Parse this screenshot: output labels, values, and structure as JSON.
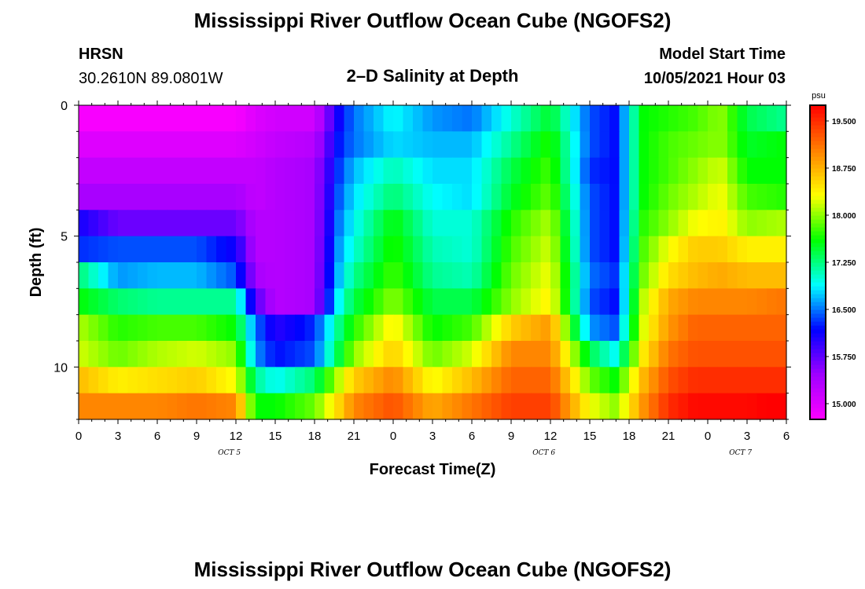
{
  "header": {
    "title": "Mississippi River Outflow Ocean Cube (NGOFS2)",
    "station": "HRSN",
    "coords": "30.2610N  89.0801W",
    "subtitle": "2–D Salinity at Depth",
    "model_label": "Model Start Time",
    "model_time": "10/05/2021 Hour 03"
  },
  "footer": {
    "title": "Mississippi River Outflow Ocean Cube (NGOFS2)"
  },
  "chart_data": {
    "type": "heatmap",
    "title": "2–D Salinity at Depth",
    "xlabel": "Forecast Time(Z)",
    "ylabel": "Depth (ft)",
    "x_tick_labels": [
      "0",
      "3",
      "6",
      "9",
      "12",
      "15",
      "18",
      "21",
      "0",
      "3",
      "6",
      "9",
      "12",
      "15",
      "18",
      "21",
      "0",
      "3",
      "6"
    ],
    "x_hours": [
      0,
      54
    ],
    "date_labels": [
      {
        "label": "OCT 5",
        "hour": 11.5
      },
      {
        "label": "OCT 6",
        "hour": 35.5
      },
      {
        "label": "OCT 7",
        "hour": 50.5
      }
    ],
    "y_ticks": [
      0,
      5,
      10
    ],
    "ylim": [
      0,
      12
    ],
    "depth_levels": [
      0.5,
      1.5,
      2.5,
      3.5,
      4.5,
      5.5,
      6.5,
      7.5,
      8.5,
      9.5,
      10.5,
      11.5
    ],
    "time_hours": [
      0,
      3,
      6,
      9,
      12,
      13.5,
      15,
      18,
      20,
      21,
      24,
      27,
      30,
      33,
      36,
      39,
      41,
      43,
      45,
      47,
      49,
      51,
      54
    ],
    "salinity": [
      [
        14.8,
        14.8,
        14.8,
        14.8,
        14.8,
        15.0,
        15.1,
        15.1,
        16.2,
        16.5,
        16.9,
        16.6,
        16.5,
        17.0,
        17.5,
        16.4,
        16.2,
        17.6,
        17.7,
        17.8,
        18.0,
        17.4,
        17.2
      ],
      [
        15.0,
        15.0,
        15.0,
        15.0,
        15.0,
        15.1,
        15.2,
        15.3,
        16.3,
        16.5,
        16.8,
        16.7,
        16.7,
        17.2,
        17.7,
        16.4,
        16.2,
        17.6,
        17.8,
        17.9,
        18.0,
        17.5,
        17.6
      ],
      [
        15.2,
        15.2,
        15.2,
        15.2,
        15.2,
        15.2,
        15.3,
        15.4,
        16.4,
        16.7,
        17.1,
        16.8,
        16.8,
        17.4,
        17.8,
        16.3,
        16.2,
        17.6,
        17.8,
        18.0,
        18.2,
        17.6,
        17.6
      ],
      [
        15.4,
        15.4,
        15.4,
        15.4,
        15.4,
        15.2,
        15.3,
        15.4,
        16.5,
        16.8,
        17.3,
        16.9,
        16.8,
        17.5,
        17.9,
        16.4,
        16.2,
        17.6,
        17.9,
        18.1,
        18.3,
        17.8,
        17.7
      ],
      [
        16.1,
        15.7,
        15.7,
        15.7,
        15.7,
        15.3,
        15.3,
        15.4,
        16.6,
        16.9,
        17.6,
        17.0,
        17.0,
        17.7,
        18.1,
        16.4,
        16.2,
        17.7,
        18.0,
        18.3,
        18.4,
        18.0,
        18.1
      ],
      [
        16.3,
        16.4,
        16.4,
        16.4,
        16.1,
        15.3,
        15.3,
        15.4,
        16.7,
        17.0,
        17.7,
        17.1,
        17.0,
        17.8,
        18.2,
        16.4,
        16.2,
        17.8,
        18.3,
        18.6,
        18.6,
        18.4,
        18.4
      ],
      [
        17.3,
        16.6,
        16.7,
        16.7,
        16.4,
        15.4,
        15.3,
        15.4,
        16.8,
        17.2,
        17.8,
        17.2,
        17.1,
        17.9,
        18.3,
        16.5,
        16.3,
        17.9,
        18.5,
        18.7,
        18.8,
        18.7,
        18.7
      ],
      [
        17.6,
        17.3,
        17.2,
        17.2,
        17.2,
        15.8,
        15.3,
        15.4,
        17.0,
        17.4,
        18.0,
        17.4,
        17.4,
        18.0,
        18.4,
        16.4,
        16.2,
        18.1,
        18.8,
        19.0,
        19.0,
        19.0,
        19.1
      ],
      [
        18.1,
        17.7,
        17.8,
        17.8,
        17.6,
        16.5,
        16.0,
        16.3,
        17.3,
        17.7,
        18.4,
        17.6,
        17.8,
        18.6,
        18.9,
        16.6,
        16.4,
        18.2,
        18.9,
        19.2,
        19.2,
        19.2,
        19.2
      ],
      [
        18.2,
        17.9,
        18.1,
        18.2,
        18.0,
        16.6,
        16.2,
        16.4,
        17.5,
        18.0,
        18.6,
        17.9,
        18.2,
        19.0,
        19.0,
        17.4,
        16.9,
        18.4,
        19.1,
        19.3,
        19.3,
        19.3,
        19.3
      ],
      [
        18.7,
        18.4,
        18.5,
        18.6,
        18.3,
        17.2,
        16.9,
        17.3,
        18.2,
        18.6,
        19.0,
        18.3,
        18.7,
        19.2,
        19.2,
        17.9,
        17.6,
        18.7,
        19.3,
        19.5,
        19.5,
        19.5,
        19.5
      ],
      [
        19.0,
        19.0,
        19.0,
        19.1,
        19.0,
        17.6,
        17.6,
        17.9,
        18.6,
        19.0,
        19.3,
        18.8,
        19.1,
        19.4,
        19.4,
        18.3,
        18.0,
        18.9,
        19.5,
        19.7,
        19.7,
        19.7,
        19.8
      ]
    ],
    "colorbar": {
      "units": "psu",
      "range": [
        14.75,
        19.75
      ],
      "tick_values": [
        15.0,
        15.75,
        16.5,
        17.25,
        18.0,
        18.75,
        19.5
      ],
      "tick_labels": [
        "15.000",
        "15.750",
        "16.500",
        "17.250",
        "18.000",
        "18.750",
        "19.500"
      ],
      "colors": [
        "#ff00ff",
        "#a000ff",
        "#0000ff",
        "#00ffff",
        "#00ff00",
        "#ffff00",
        "#ff8000",
        "#ff0000"
      ]
    }
  }
}
